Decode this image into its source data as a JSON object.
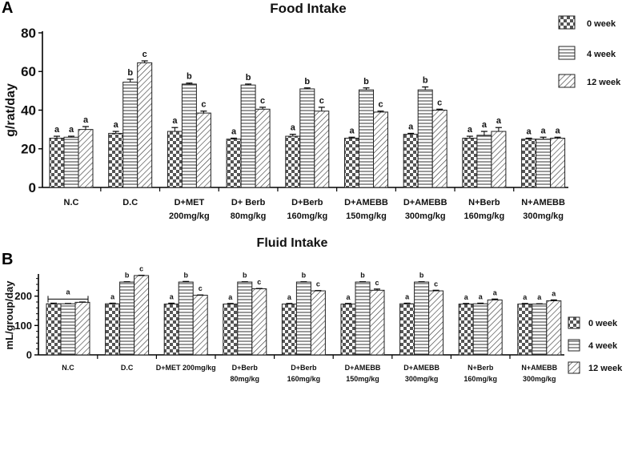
{
  "chart_data": [
    {
      "panel_label": "A",
      "type": "bar",
      "title": "Food Intake",
      "ylabel": "g/rat/day",
      "xlabel": "",
      "ylim": [
        0,
        80
      ],
      "yticks": [
        "0",
        "20",
        "40",
        "60",
        "80"
      ],
      "categories": [
        [
          "N.C"
        ],
        [
          "D.C"
        ],
        [
          "D+MET",
          "200mg/kg"
        ],
        [
          "D+ Berb",
          "80mg/kg"
        ],
        [
          "D+Berb",
          "160mg/kg"
        ],
        [
          "D+AMEBB",
          "150mg/kg"
        ],
        [
          "D+AMEBB",
          "300mg/kg"
        ],
        [
          "N+Berb",
          "160mg/kg"
        ],
        [
          "N+AMEBB",
          "300mg/kg"
        ]
      ],
      "series": [
        {
          "name": "0 week",
          "pattern": "checker",
          "values": [
            25.5,
            28,
            29,
            25,
            26.5,
            25.5,
            27.5,
            25.5,
            25
          ],
          "errors": [
            1,
            1,
            2,
            0.5,
            1,
            0.5,
            0.5,
            1,
            0.5
          ],
          "labels": [
            "a",
            "a",
            "a",
            "a",
            "a",
            "a",
            "a",
            "a",
            "a"
          ]
        },
        {
          "name": "4 week",
          "pattern": "horizontal",
          "values": [
            26,
            54.5,
            53.5,
            53,
            51,
            50.5,
            50.5,
            27,
            25
          ],
          "errors": [
            0.5,
            1.5,
            0.5,
            0.5,
            0.5,
            1,
            1.5,
            2,
            1
          ],
          "labels": [
            "a",
            "b",
            "b",
            "b",
            "b",
            "b",
            "b",
            "a",
            "a"
          ]
        },
        {
          "name": "12 week",
          "pattern": "diagonal",
          "values": [
            30,
            64.5,
            38.5,
            40.5,
            39.5,
            39,
            40,
            29,
            25.5
          ],
          "errors": [
            1.5,
            1,
            1,
            1,
            2,
            0.5,
            0.5,
            2,
            0.5
          ],
          "labels": [
            "a",
            "c",
            "c",
            "c",
            "c",
            "c",
            "c",
            "a",
            "a"
          ]
        }
      ],
      "legend": "top-right",
      "grid": false
    },
    {
      "panel_label": "B",
      "type": "bar",
      "title": "Fluid Intake",
      "ylabel": "mL/group/day",
      "xlabel": "",
      "ylim": [
        0,
        270
      ],
      "yticks": [
        "0",
        "100",
        "200"
      ],
      "categories": [
        [
          "N.C"
        ],
        [
          "D.C"
        ],
        [
          "D+MET 200mg/kg"
        ],
        [
          "D+Berb",
          "80mg/kg"
        ],
        [
          "D+Berb",
          "160mg/kg"
        ],
        [
          "D+AMEBB",
          "150mg/kg"
        ],
        [
          "D+AMEBB",
          "300mg/kg"
        ],
        [
          "N+Berb",
          "160mg/kg"
        ],
        [
          "N+AMEBB",
          "300mg/kg"
        ]
      ],
      "series": [
        {
          "name": "0 week",
          "pattern": "checker",
          "values": [
            174,
            174,
            173,
            173,
            173,
            173,
            174,
            173,
            173
          ],
          "errors": [
            2,
            2,
            3,
            2,
            2,
            2,
            2,
            2,
            2
          ],
          "labels": [
            "",
            "a",
            "a",
            "a",
            "a",
            "a",
            "a",
            "a",
            "a"
          ]
        },
        {
          "name": "4 week",
          "pattern": "horizontal",
          "values": [
            174,
            248,
            248,
            248,
            248,
            248,
            248,
            174,
            173
          ],
          "errors": [
            1,
            1,
            2,
            1,
            1,
            1,
            1,
            2,
            1
          ],
          "labels": [
            "",
            "b",
            "b",
            "b",
            "b",
            "b",
            "b",
            "a",
            "a"
          ]
        },
        {
          "name": "12 week",
          "pattern": "diagonal",
          "values": [
            179,
            270,
            203,
            225,
            218,
            220,
            218,
            187,
            184
          ],
          "errors": [
            1,
            1,
            1,
            1,
            1,
            4,
            2,
            3,
            3
          ],
          "labels": [
            "",
            "c",
            "c",
            "c",
            "c",
            "c",
            "c",
            "a",
            "a"
          ]
        }
      ],
      "group_label": {
        "text": "a",
        "category": 0
      },
      "legend": "right",
      "grid": false
    }
  ]
}
